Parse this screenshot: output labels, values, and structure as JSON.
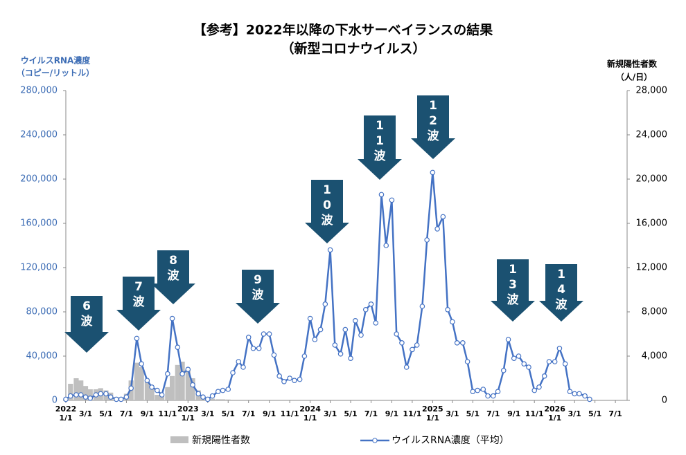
{
  "chart_data": {
    "type": "combo",
    "title": "【参考】2022年以降の下水サーベイランスの結果",
    "subtitle": "（新型コロナウイルス）",
    "y_label": [
      "ウイルスRNA濃度",
      "（コピー/リットル）"
    ],
    "y2_label": [
      "新規陽性者数",
      "（人/日）"
    ],
    "xlim": [
      "2022-01-01",
      "2026-08-05"
    ],
    "xticks": [
      {
        "value": "2022-01-01",
        "label": "2022\n1/1"
      },
      {
        "value": "2022-03-01",
        "label": "3/1"
      },
      {
        "value": "2022-05-01",
        "label": "5/1"
      },
      {
        "value": "2022-07-01",
        "label": "7/1"
      },
      {
        "value": "2022-09-01",
        "label": "9/1"
      },
      {
        "value": "2022-11-01",
        "label": "11/1"
      },
      {
        "value": "2023-01-01",
        "label": "2023\n1/1"
      },
      {
        "value": "2023-03-01",
        "label": "3/1"
      },
      {
        "value": "2023-05-01",
        "label": "5/1"
      },
      {
        "value": "2023-07-01",
        "label": "7/1"
      },
      {
        "value": "2023-09-01",
        "label": "9/1"
      },
      {
        "value": "2023-11-01",
        "label": "11/1"
      },
      {
        "value": "2024-01-01",
        "label": "2024\n1/1"
      },
      {
        "value": "2024-03-01",
        "label": "3/1"
      },
      {
        "value": "2024-05-01",
        "label": "5/1"
      },
      {
        "value": "2024-07-01",
        "label": "7/1"
      },
      {
        "value": "2024-09-01",
        "label": "9/1"
      },
      {
        "value": "2024-11-01",
        "label": "11/1"
      },
      {
        "value": "2025-01-01",
        "label": "2025\n1/1"
      },
      {
        "value": "2025-03-01",
        "label": "3/1"
      },
      {
        "value": "2025-05-01",
        "label": "5/1"
      },
      {
        "value": "2025-07-01",
        "label": "7/1"
      },
      {
        "value": "2025-09-01",
        "label": "9/1"
      },
      {
        "value": "2025-11-01",
        "label": "11/1"
      },
      {
        "value": "2026-01-01",
        "label": "2026\n1/1"
      },
      {
        "value": "2026-03-01",
        "label": "3/1"
      },
      {
        "value": "2026-05-01",
        "label": "5/1"
      },
      {
        "value": "2026-07-01",
        "label": "7/1"
      }
    ],
    "ylim": [
      0,
      280000
    ],
    "yticks": [
      0,
      {
        "value": 40000,
        "label": "40,000"
      },
      {
        "value": 80000,
        "label": "80,000"
      },
      {
        "value": 120000,
        "label": "120,000"
      },
      {
        "value": 160000,
        "label": "160,000"
      },
      {
        "value": 200000,
        "label": "200,000"
      },
      {
        "value": 240000,
        "label": "240,000"
      },
      {
        "value": 280000,
        "label": "280,000"
      }
    ],
    "y2lim": [
      0,
      28000
    ],
    "y2ticks": [
      0,
      {
        "value": 4000,
        "label": "4,000"
      },
      {
        "value": 8000,
        "label": "8,000"
      },
      {
        "value": 12000,
        "label": "12,000"
      },
      {
        "value": 16000,
        "label": "16,000"
      },
      {
        "value": 20000,
        "label": "20,000"
      },
      {
        "value": 24000,
        "label": "24,000"
      },
      {
        "value": 28000,
        "label": "28,000"
      }
    ],
    "series": [
      {
        "name": "新規陽性者数",
        "type": "bar",
        "axis": "y2",
        "color": "#bfbfbf",
        "x": [
          "2022-01-01",
          "2022-01-15",
          "2022-02-01",
          "2022-02-15",
          "2022-03-01",
          "2022-03-15",
          "2022-04-01",
          "2022-04-15",
          "2022-05-01",
          "2022-05-15",
          "2022-06-01",
          "2022-06-15",
          "2022-07-01",
          "2022-07-15",
          "2022-08-01",
          "2022-08-15",
          "2022-09-01",
          "2022-09-15",
          "2022-10-01",
          "2022-10-15",
          "2022-11-01",
          "2022-11-15",
          "2022-12-01",
          "2022-12-15",
          "2023-01-01",
          "2023-01-15",
          "2023-02-01",
          "2023-02-15",
          "2023-03-01",
          "2023-03-15",
          "2023-04-01",
          "2023-04-15",
          "2023-05-01"
        ],
        "values": [
          200,
          1500,
          2000,
          1800,
          1300,
          1000,
          1000,
          1100,
          900,
          700,
          300,
          250,
          600,
          1800,
          3400,
          3000,
          1800,
          1000,
          500,
          500,
          1200,
          2200,
          3200,
          3500,
          2800,
          2000,
          900,
          400,
          250,
          150,
          100,
          100,
          80
        ]
      },
      {
        "name": "ウイルスRNA濃度（平均）",
        "type": "line",
        "color": "#4472c4",
        "x": [
          "2022-01-01",
          "2022-01-15",
          "2022-02-01",
          "2022-02-15",
          "2022-03-01",
          "2022-03-15",
          "2022-04-01",
          "2022-04-15",
          "2022-05-01",
          "2022-05-15",
          "2022-06-01",
          "2022-06-15",
          "2022-07-01",
          "2022-07-15",
          "2022-08-01",
          "2022-08-15",
          "2022-09-01",
          "2022-09-15",
          "2022-10-01",
          "2022-10-15",
          "2022-11-01",
          "2022-11-15",
          "2022-12-01",
          "2022-12-15",
          "2023-01-01",
          "2023-01-15",
          "2023-02-01",
          "2023-02-15",
          "2023-03-01",
          "2023-03-15",
          "2023-04-01",
          "2023-04-15",
          "2023-05-01",
          "2023-05-15",
          "2023-06-01",
          "2023-06-15",
          "2023-07-01",
          "2023-07-15",
          "2023-08-01",
          "2023-08-15",
          "2023-09-01",
          "2023-09-15",
          "2023-10-01",
          "2023-10-15",
          "2023-11-01",
          "2023-11-15",
          "2023-12-01",
          "2023-12-15",
          "2024-01-01",
          "2024-01-15",
          "2024-02-01",
          "2024-02-15",
          "2024-03-01",
          "2024-03-15",
          "2024-04-01",
          "2024-04-15",
          "2024-05-01",
          "2024-05-15",
          "2024-06-01",
          "2024-06-15",
          "2024-07-01",
          "2024-07-15",
          "2024-08-01",
          "2024-08-15",
          "2024-09-01",
          "2024-09-15",
          "2024-10-01",
          "2024-10-15",
          "2024-11-01",
          "2024-11-15",
          "2024-12-01",
          "2024-12-15",
          "2025-01-01",
          "2025-01-15",
          "2025-02-01",
          "2025-02-15",
          "2025-03-01",
          "2025-03-15",
          "2025-04-01",
          "2025-04-15",
          "2025-05-01",
          "2025-05-15",
          "2025-06-01",
          "2025-06-15",
          "2025-07-01",
          "2025-07-15",
          "2025-08-01",
          "2025-08-15",
          "2025-09-01",
          "2025-09-15",
          "2025-10-01",
          "2025-10-15",
          "2025-11-01",
          "2025-11-15",
          "2025-12-01",
          "2025-12-15",
          "2026-01-01",
          "2026-01-15",
          "2026-02-01",
          "2026-02-15",
          "2026-03-01",
          "2026-03-15",
          "2026-04-01",
          "2026-04-15"
        ],
        "values": [
          1000,
          4000,
          5000,
          5000,
          3000,
          2000,
          5000,
          6000,
          6000,
          3000,
          1000,
          1000,
          3000,
          11000,
          56000,
          33000,
          18000,
          12000,
          9000,
          5000,
          24000,
          74000,
          48000,
          24000,
          28000,
          14000,
          6000,
          3000,
          1000,
          4000,
          8000,
          9000,
          10000,
          25000,
          35000,
          30000,
          57000,
          47000,
          47000,
          60000,
          60000,
          41000,
          22000,
          17000,
          20000,
          18000,
          19000,
          40000,
          74000,
          55000,
          64000,
          87000,
          136000,
          50000,
          42000,
          64000,
          38000,
          72000,
          59000,
          82000,
          87000,
          70000,
          186000,
          140000,
          181000,
          60000,
          52000,
          30000,
          46000,
          50000,
          85000,
          145000,
          206000,
          155000,
          166000,
          82000,
          71000,
          52000,
          52000,
          35000,
          8000,
          9000,
          10000,
          4000,
          4000,
          8000,
          27000,
          55000,
          38000,
          40000,
          33000,
          30000,
          9000,
          12000,
          22000,
          35000,
          35000,
          47000,
          33000,
          8000,
          6000,
          6000,
          4000,
          1000
        ]
      }
    ],
    "annotations": [
      "6波",
      "7波",
      "8波",
      "9波",
      "10波",
      "11波",
      "12波",
      "13波",
      "14波"
    ],
    "annotation_color": "#1b5171"
  }
}
